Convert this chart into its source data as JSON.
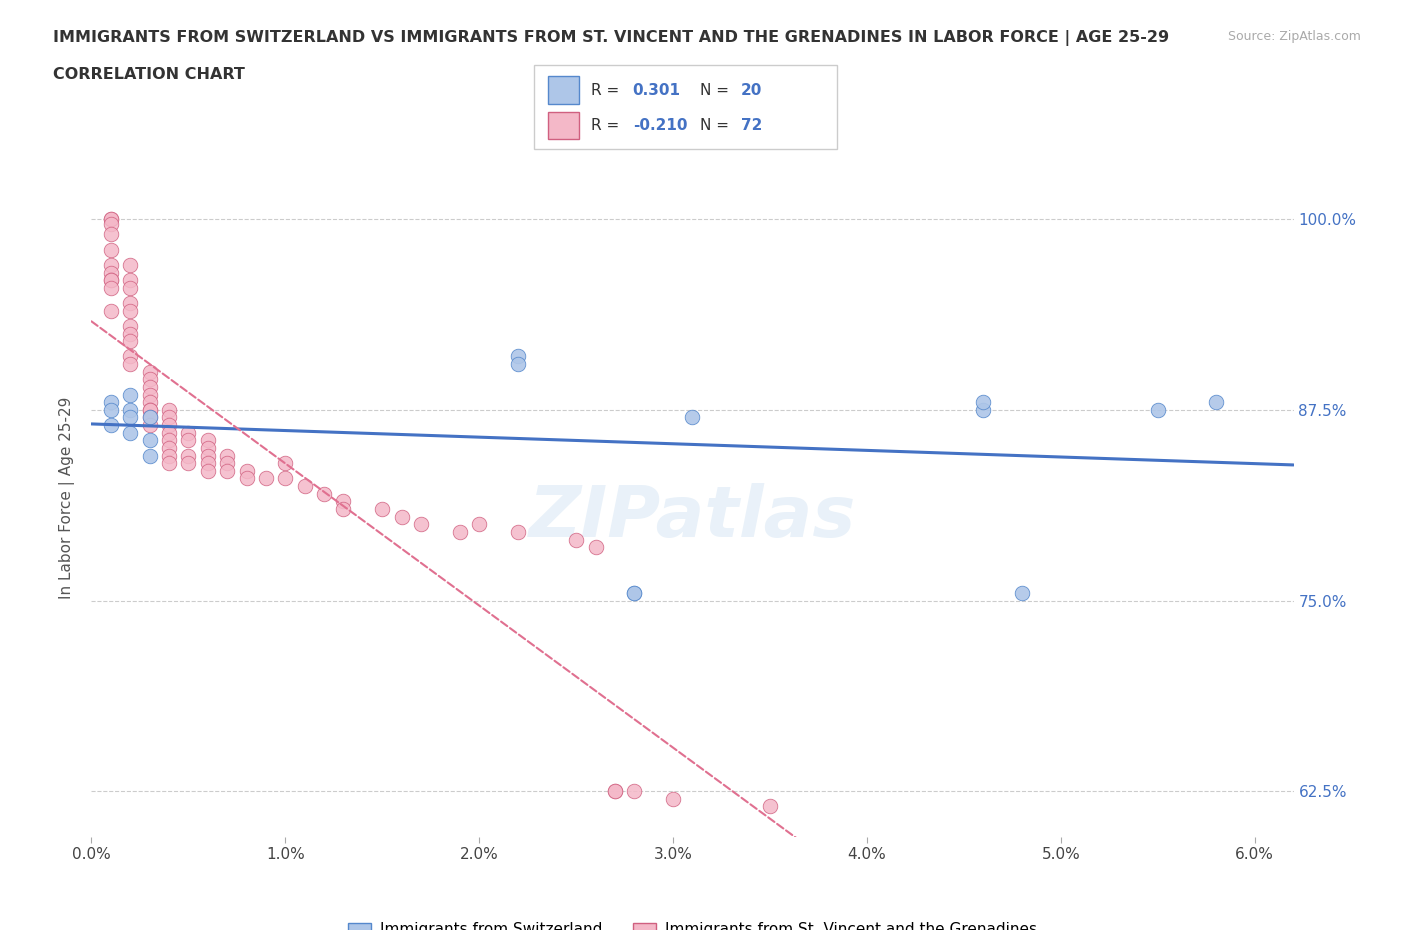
{
  "title_line1": "IMMIGRANTS FROM SWITZERLAND VS IMMIGRANTS FROM ST. VINCENT AND THE GRENADINES IN LABOR FORCE | AGE 25-29",
  "title_line2": "CORRELATION CHART",
  "ylabel": "In Labor Force | Age 25-29",
  "source_text": "Source: ZipAtlas.com",
  "xlim": [
    0.0,
    0.062
  ],
  "ylim": [
    0.595,
    1.04
  ],
  "xtick_values": [
    0.0,
    0.01,
    0.02,
    0.03,
    0.04,
    0.05,
    0.06
  ],
  "xtick_labels": [
    "0.0%",
    "1.0%",
    "2.0%",
    "3.0%",
    "4.0%",
    "5.0%",
    "6.0%"
  ],
  "ytick_values": [
    0.625,
    0.75,
    0.875,
    1.0
  ],
  "ytick_labels": [
    "62.5%",
    "75.0%",
    "87.5%",
    "100.0%"
  ],
  "color_swiss_fill": "#aec6e8",
  "color_swiss_edge": "#5588cc",
  "color_swiss_line": "#4472c4",
  "color_vincent_fill": "#f4b8c8",
  "color_vincent_edge": "#d06080",
  "color_vincent_line": "#e07090",
  "watermark": "ZIPatlas",
  "swiss_x": [
    0.001,
    0.001,
    0.001,
    0.002,
    0.002,
    0.002,
    0.002,
    0.003,
    0.003,
    0.003,
    0.022,
    0.022,
    0.028,
    0.028,
    0.031,
    0.046,
    0.046,
    0.048,
    0.055,
    0.058
  ],
  "swiss_y": [
    0.88,
    0.875,
    0.865,
    0.885,
    0.875,
    0.87,
    0.86,
    0.87,
    0.855,
    0.845,
    0.91,
    0.905,
    0.755,
    0.755,
    0.87,
    0.875,
    0.88,
    0.755,
    0.875,
    0.88
  ],
  "vincent_x": [
    0.001,
    0.001,
    0.001,
    0.001,
    0.001,
    0.001,
    0.001,
    0.001,
    0.001,
    0.001,
    0.001,
    0.002,
    0.002,
    0.002,
    0.002,
    0.002,
    0.002,
    0.002,
    0.002,
    0.002,
    0.002,
    0.003,
    0.003,
    0.003,
    0.003,
    0.003,
    0.003,
    0.003,
    0.003,
    0.003,
    0.004,
    0.004,
    0.004,
    0.004,
    0.004,
    0.004,
    0.004,
    0.004,
    0.005,
    0.005,
    0.005,
    0.005,
    0.006,
    0.006,
    0.006,
    0.006,
    0.006,
    0.007,
    0.007,
    0.007,
    0.008,
    0.008,
    0.009,
    0.01,
    0.01,
    0.011,
    0.012,
    0.013,
    0.013,
    0.015,
    0.016,
    0.017,
    0.019,
    0.02,
    0.022,
    0.025,
    0.026,
    0.027,
    0.027,
    0.028,
    0.03,
    0.035
  ],
  "vincent_y": [
    1.0,
    1.0,
    0.997,
    0.99,
    0.98,
    0.97,
    0.965,
    0.96,
    0.96,
    0.955,
    0.94,
    0.97,
    0.96,
    0.955,
    0.945,
    0.94,
    0.93,
    0.925,
    0.92,
    0.91,
    0.905,
    0.9,
    0.895,
    0.89,
    0.885,
    0.88,
    0.875,
    0.875,
    0.87,
    0.865,
    0.875,
    0.87,
    0.865,
    0.86,
    0.855,
    0.85,
    0.845,
    0.84,
    0.86,
    0.855,
    0.845,
    0.84,
    0.855,
    0.85,
    0.845,
    0.84,
    0.835,
    0.845,
    0.84,
    0.835,
    0.835,
    0.83,
    0.83,
    0.84,
    0.83,
    0.825,
    0.82,
    0.815,
    0.81,
    0.81,
    0.805,
    0.8,
    0.795,
    0.8,
    0.795,
    0.79,
    0.785,
    0.625,
    0.625,
    0.625,
    0.62,
    0.615
  ]
}
